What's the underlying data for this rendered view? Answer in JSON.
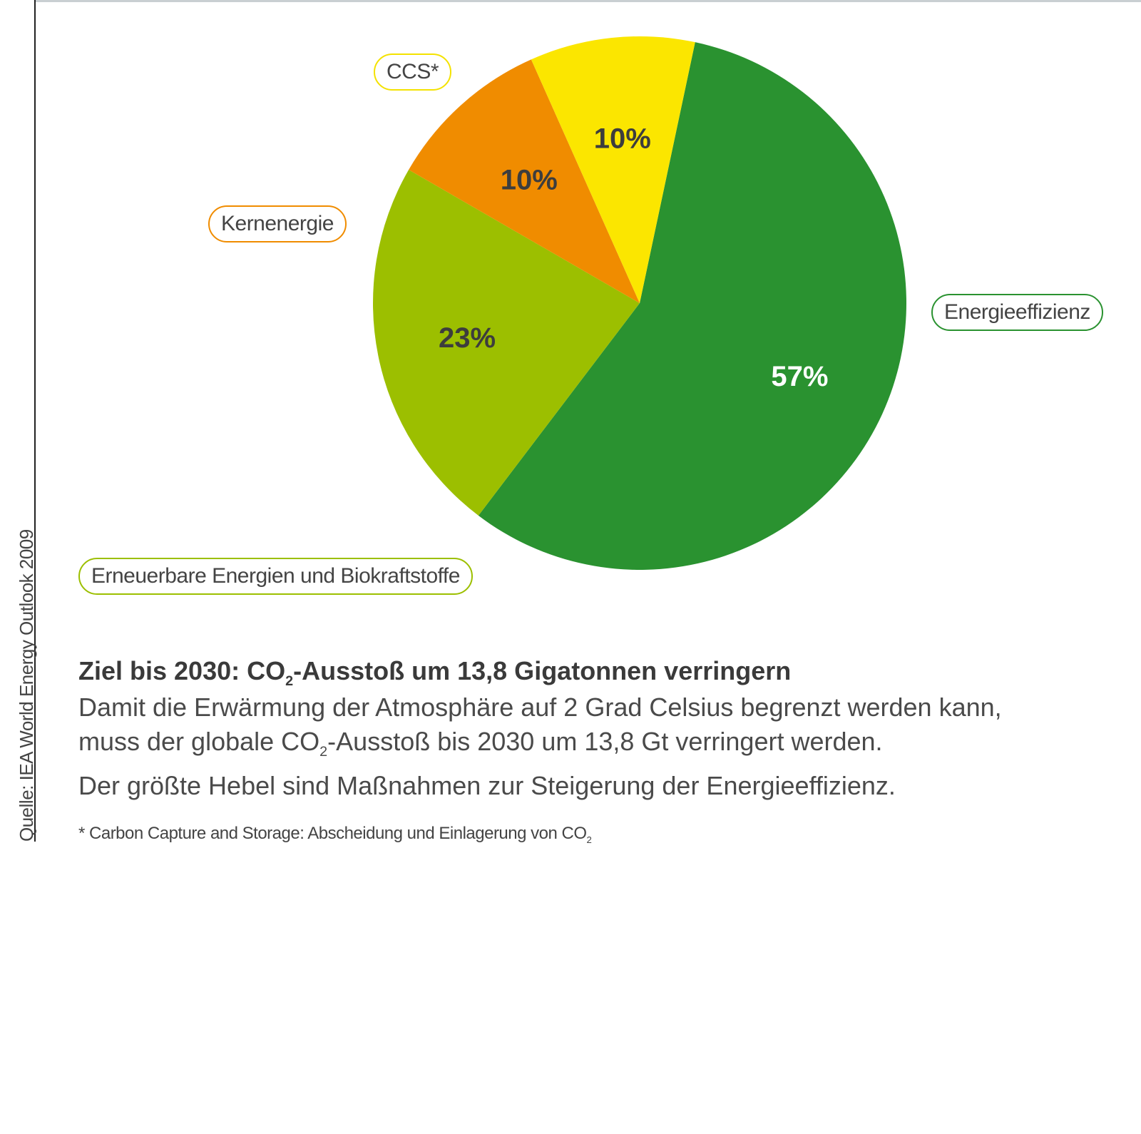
{
  "source": "Quelle: IEA World Energy Outlook 2009",
  "chart_data": {
    "type": "pie",
    "slices": [
      {
        "category": "Energieeffizienz",
        "value": 57,
        "label": "57%",
        "color": "#2a9230",
        "label_color": "#ffffff"
      },
      {
        "category": "Erneuerbare Energien und Biokraftstoffe",
        "value": 23,
        "label": "23%",
        "color": "#9cbf00",
        "label_color": "#3d3d3d"
      },
      {
        "category": "Kernenergie",
        "value": 10,
        "label": "10%",
        "color": "#f08c00",
        "label_color": "#3d3d3d"
      },
      {
        "category": "CCS*",
        "value": 10,
        "label": "10%",
        "color": "#fbe600",
        "label_color": "#3d3d3d"
      }
    ]
  },
  "callouts": {
    "ccs": "CCS*",
    "kernenergie": "Kernenergie",
    "energieeffizienz": "Energieeffizienz",
    "erneuerbare": "Erneuerbare Energien und Biokraftstoffe"
  },
  "headline": {
    "part1": "Ziel bis 2030: CO",
    "sub": "2",
    "part2": "-Ausstoß um 13,8 Gigatonnen verringern"
  },
  "body": {
    "line1": "Damit die Erwärmung der Atmosphäre auf 2 Grad Celsius begrenzt werden kann,",
    "line2_part1": "muss der globale CO",
    "line2_sub": "2",
    "line2_part2": "-Ausstoß bis 2030 um 13,8 Gt verringert werden.",
    "line3": "Der größte Hebel sind Maßnahmen zur Steigerung der Energieeffizienz."
  },
  "footnote": {
    "part1": "* Carbon Capture and Storage: Abscheidung und Einlagerung von CO",
    "sub": "2"
  }
}
